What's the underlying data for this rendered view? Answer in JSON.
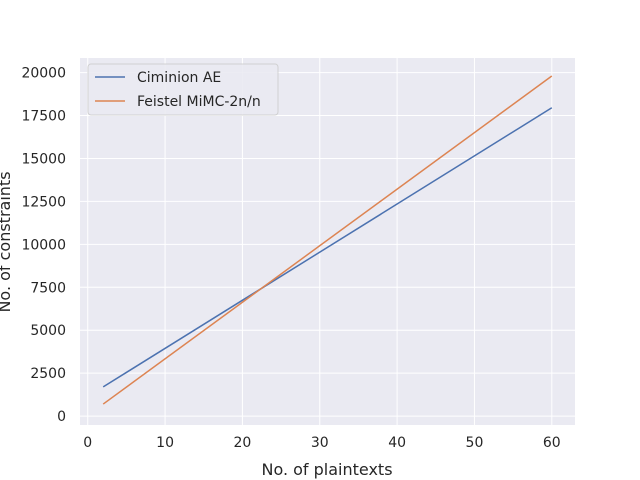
{
  "chart_data": {
    "type": "line",
    "title": "",
    "xlabel": "No. of plaintexts",
    "ylabel": "No. of constraints",
    "xlim": [
      -1,
      63
    ],
    "ylim": [
      -520,
      20850
    ],
    "xticks": [
      0,
      10,
      20,
      30,
      40,
      50,
      60
    ],
    "yticks": [
      0,
      2500,
      5000,
      7500,
      10000,
      12500,
      15000,
      17500,
      20000
    ],
    "grid": true,
    "legend_position": "top-left",
    "background_color": "#eaeaf2",
    "grid_color": "#ffffff",
    "series": [
      {
        "name": "Ciminion AE",
        "color": "#4c72b0",
        "x": [
          2,
          60
        ],
        "y": [
          1700,
          17950
        ]
      },
      {
        "name": "Feistel MiMC-2n/n",
        "color": "#dd8452",
        "x": [
          2,
          60
        ],
        "y": [
          700,
          19800
        ]
      }
    ]
  }
}
